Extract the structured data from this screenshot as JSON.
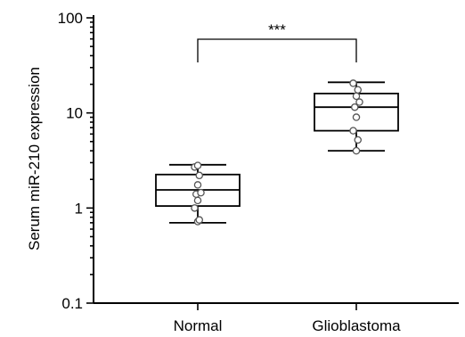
{
  "chart_data": {
    "type": "box",
    "ylabel": "Serum miR-210 expression",
    "yscale": "log",
    "ylim": [
      0.1,
      100
    ],
    "yticks": [
      0.1,
      1,
      10,
      100
    ],
    "ytick_labels": [
      "0.1",
      "1",
      "10",
      "100"
    ],
    "categories": [
      "Normal",
      "Glioblastoma"
    ],
    "boxes": [
      {
        "category": "Normal",
        "whisker_low": 0.7,
        "q1": 1.05,
        "median": 1.55,
        "q3": 2.25,
        "whisker_high": 2.85,
        "points": [
          0.72,
          0.75,
          1.0,
          1.2,
          1.4,
          1.45,
          1.75,
          2.2,
          2.7,
          2.8
        ]
      },
      {
        "category": "Glioblastoma",
        "whisker_low": 4.0,
        "q1": 6.5,
        "median": 11.5,
        "q3": 16.0,
        "whisker_high": 21.0,
        "points": [
          4.0,
          5.2,
          6.5,
          9.0,
          11.5,
          13.0,
          15.0,
          17.5,
          20.5
        ]
      }
    ],
    "significance": {
      "between": [
        "Normal",
        "Glioblastoma"
      ],
      "label": "***"
    }
  }
}
